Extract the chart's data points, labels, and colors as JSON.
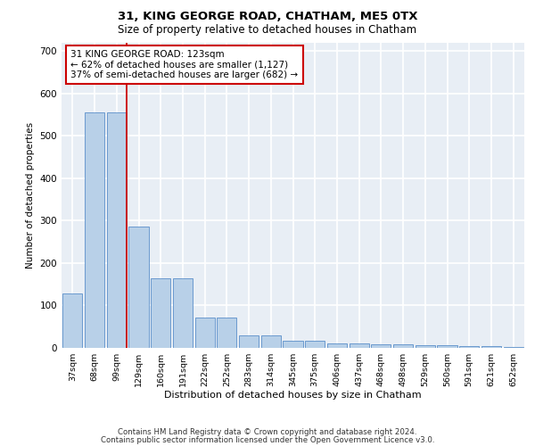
{
  "title_line1": "31, KING GEORGE ROAD, CHATHAM, ME5 0TX",
  "title_line2": "Size of property relative to detached houses in Chatham",
  "xlabel": "Distribution of detached houses by size in Chatham",
  "ylabel": "Number of detached properties",
  "footer_line1": "Contains HM Land Registry data © Crown copyright and database right 2024.",
  "footer_line2": "Contains public sector information licensed under the Open Government Licence v3.0.",
  "categories": [
    "37sqm",
    "68sqm",
    "99sqm",
    "129sqm",
    "160sqm",
    "191sqm",
    "222sqm",
    "252sqm",
    "283sqm",
    "314sqm",
    "345sqm",
    "375sqm",
    "406sqm",
    "437sqm",
    "468sqm",
    "498sqm",
    "529sqm",
    "560sqm",
    "591sqm",
    "621sqm",
    "652sqm"
  ],
  "values": [
    128,
    555,
    555,
    285,
    165,
    165,
    72,
    72,
    30,
    30,
    16,
    16,
    10,
    10,
    8,
    8,
    7,
    7,
    5,
    5,
    3
  ],
  "bar_color": "#b8d0e8",
  "bar_edge_color": "#5b8fc9",
  "highlight_color": "#cc0000",
  "ylim": [
    0,
    720
  ],
  "yticks": [
    0,
    100,
    200,
    300,
    400,
    500,
    600,
    700
  ],
  "annotation_line1": "31 KING GEORGE ROAD: 123sqm",
  "annotation_line2": "← 62% of detached houses are smaller (1,127)",
  "annotation_line3": "37% of semi-detached houses are larger (682) →",
  "annotation_box_color": "#cc0000",
  "vline_x_index": 2,
  "background_color": "#e8eef5"
}
